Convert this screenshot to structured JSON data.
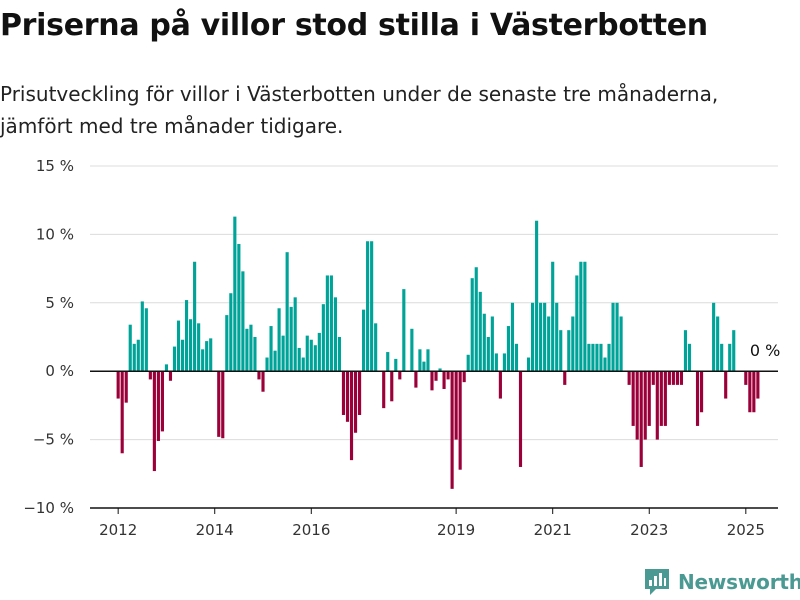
{
  "header": {
    "title": "Priserna på villor stod stilla i Västerbotten",
    "subtitle": "Prisutveckling för villor i Västerbotten under de senaste tre månaderna, jämfört med tre månader tidigare."
  },
  "brand": {
    "name": "Newsworthy",
    "color": "#4a9a93",
    "icon": "newsworthy-bar-chart-icon"
  },
  "chart_data": {
    "type": "bar",
    "start_month": "2012-01",
    "values": [
      -2,
      -6,
      -2.3,
      3.4,
      2,
      2.3,
      5.1,
      4.6,
      -0.6,
      -7.3,
      -5.1,
      -4.4,
      0.5,
      -0.7,
      1.8,
      3.7,
      2.3,
      5.2,
      3.8,
      8,
      3.5,
      1.6,
      2.2,
      2.4,
      0,
      -4.8,
      -4.9,
      4.1,
      5.7,
      11.3,
      9.3,
      7.3,
      3.1,
      3.4,
      2.5,
      -0.6,
      -1.5,
      1,
      3.3,
      1.5,
      4.6,
      2.6,
      8.7,
      4.7,
      5.4,
      1.7,
      1,
      2.6,
      2.3,
      1.9,
      2.8,
      4.9,
      7,
      7,
      5.4,
      2.5,
      -3.2,
      -3.7,
      -6.5,
      -4.5,
      -3.2,
      4.5,
      9.5,
      9.5,
      3.5,
      0,
      -2.7,
      1.4,
      -2.2,
      0.9,
      -0.6,
      6,
      0,
      3.1,
      -1.2,
      1.6,
      0.7,
      1.6,
      -1.4,
      -0.7,
      0.2,
      -1.3,
      -0.6,
      -8.6,
      -5,
      -7.2,
      -0.8,
      1.2,
      6.8,
      7.6,
      5.8,
      4.2,
      2.5,
      4,
      1.3,
      -2,
      1.3,
      3.3,
      5,
      2,
      -7,
      0,
      1,
      5,
      11,
      5,
      5,
      4,
      8,
      5,
      3,
      -1,
      3,
      4,
      7,
      8,
      8,
      2,
      2,
      2,
      2,
      1,
      2,
      5,
      5,
      4,
      0,
      -1,
      -4,
      -5,
      -7,
      -5,
      -4,
      -1,
      -5,
      -4,
      -4,
      -1,
      -1,
      -1,
      -1,
      3,
      2,
      0,
      -4,
      -3,
      0,
      0,
      5,
      4,
      2,
      -2,
      2,
      3,
      0,
      0,
      -1,
      -3,
      -3,
      -2,
      0
    ],
    "end_label": "0 %",
    "y_ticks": [
      15,
      10,
      5,
      0,
      -5,
      -10
    ],
    "y_tick_labels": [
      "15 %",
      "10 %",
      "5 %",
      "0 %",
      "−5 %",
      "−10 %"
    ],
    "ylim": [
      -10,
      15
    ],
    "x_ticks": [
      "2012",
      "2014",
      "2016",
      "2019",
      "2021",
      "2023",
      "2025"
    ],
    "x_tick_years": [
      2012,
      2014,
      2016,
      2019,
      2021,
      2023,
      2025
    ],
    "x_range": [
      "2011-06",
      "2025-09"
    ],
    "colors": {
      "positive": "#00a398",
      "negative": "#9b0039",
      "zero_line": "#111111",
      "grid": "#dcdcdc"
    },
    "grid": true
  }
}
